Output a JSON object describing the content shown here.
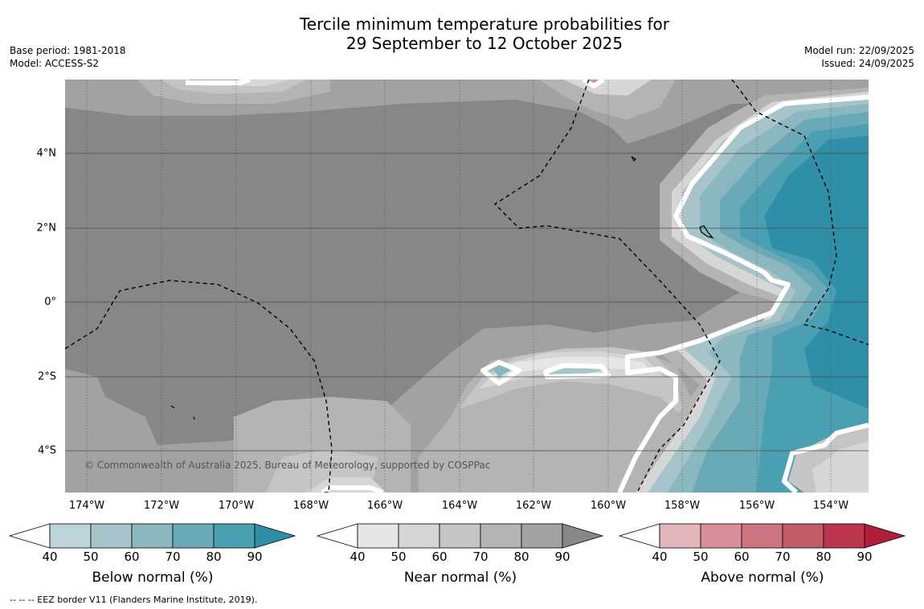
{
  "header": {
    "title_line1": "Tercile minimum temperature probabilities for",
    "title_line2": "29 September to 12 October 2025",
    "base_period": "Base period: 1981-2018",
    "model": "Model: ACCESS-S2",
    "model_run": "Model run: 22/09/2025",
    "issued": "Issued: 24/09/2025"
  },
  "map": {
    "lat_labels": [
      "4°N",
      "2°N",
      "0°",
      "2°S",
      "4°S"
    ],
    "lon_labels": [
      "174°W",
      "172°W",
      "170°W",
      "168°W",
      "166°W",
      "164°W",
      "162°W",
      "160°W",
      "158°W",
      "156°W",
      "154°W"
    ],
    "copyright": "© Commonwealth of Australia 2025, Bureau of Meteorology, supported by COSPPac",
    "colors": {
      "near_90": "#878787",
      "near_80": "#a2a2a2",
      "near_70": "#b4b4b4",
      "near_60": "#c5c5c5",
      "near_50": "#d6d6d6",
      "near_40": "#e6e6e6",
      "below_50": "#a6c4c9",
      "below_60": "#8bb7bf",
      "below_70": "#6aaab8",
      "below_80": "#4a9fb2",
      "below_90": "#2e8fa6",
      "above_50": "#d88f99"
    }
  },
  "colorbars": [
    {
      "title": "Below normal (%)",
      "ticks": [
        "40",
        "50",
        "60",
        "70",
        "80",
        "90"
      ],
      "colors": [
        "#bcd3d8",
        "#a6c4c9",
        "#8bb7bf",
        "#6aaab8",
        "#4a9fb2",
        "#2e8fa6"
      ]
    },
    {
      "title": "Near normal (%)",
      "ticks": [
        "40",
        "50",
        "60",
        "70",
        "80",
        "90"
      ],
      "colors": [
        "#e6e6e6",
        "#d6d6d6",
        "#c5c5c5",
        "#b4b4b4",
        "#a2a2a2",
        "#878787"
      ]
    },
    {
      "title": "Above normal (%)",
      "ticks": [
        "40",
        "50",
        "60",
        "70",
        "80",
        "90"
      ],
      "colors": [
        "#e3b6bc",
        "#d88f99",
        "#cc7480",
        "#c35c6a",
        "#bd3650",
        "#b11e3a"
      ]
    }
  ],
  "footnote": "--  --  -- EEZ border V11 (Flanders Marine Institute, 2019)."
}
